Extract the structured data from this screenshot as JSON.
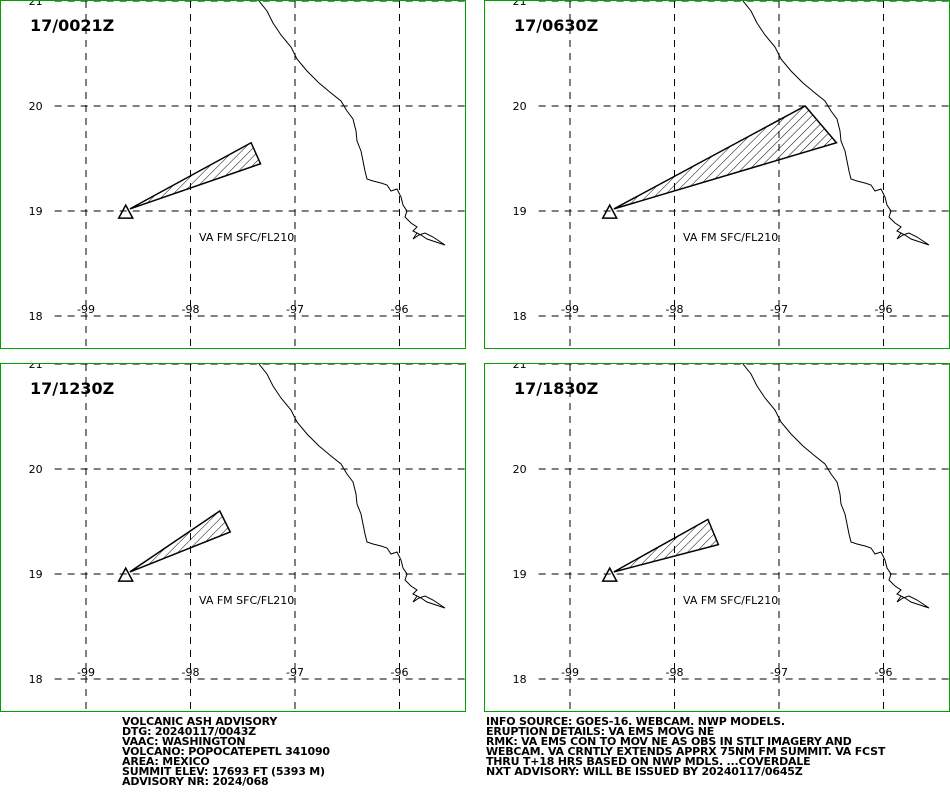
{
  "panels": [
    {
      "time": "17/0021Z",
      "label": "VA FM SFC/FL210",
      "plume": [
        [
          -98.58,
          19.02
        ],
        [
          -97.42,
          19.65
        ],
        [
          -97.33,
          19.45
        ]
      ]
    },
    {
      "time": "17/0630Z",
      "label": "VA FM SFC/FL210",
      "plume": [
        [
          -98.58,
          19.02
        ],
        [
          -96.75,
          20.0
        ],
        [
          -96.45,
          19.65
        ]
      ]
    },
    {
      "time": "17/1230Z",
      "label": "VA FM SFC/FL210",
      "plume": [
        [
          -98.58,
          19.02
        ],
        [
          -97.72,
          19.6
        ],
        [
          -97.62,
          19.4
        ]
      ]
    },
    {
      "time": "17/1830Z",
      "label": "VA FM SFC/FL210",
      "plume": [
        [
          -98.58,
          19.02
        ],
        [
          -97.68,
          19.52
        ],
        [
          -97.58,
          19.28
        ]
      ]
    }
  ],
  "map": {
    "lat_labels": [
      "21",
      "20",
      "19",
      "18"
    ],
    "lon_labels": [
      "-99",
      "-98",
      "-97",
      "-96"
    ],
    "volcano_symbol": "triangle-icon",
    "border_color": "#00a000"
  },
  "advisory_left": [
    "VOLCANIC ASH ADVISORY",
    "DTG: 20240117/0043Z",
    "VAAC: WASHINGTON",
    "VOLCANO: POPOCATEPETL 341090",
    "AREA: MEXICO",
    "SUMMIT ELEV: 17693 FT (5393 M)",
    "ADVISORY NR: 2024/068"
  ],
  "advisory_right": [
    "INFO SOURCE: GOES-16. WEBCAM. NWP MODELS.",
    "ERUPTION DETAILS: VA EMS MOVG NE",
    "RMK: VA EMS CON TO MOV NE AS OBS IN STLT IMAGERY AND",
    "WEBCAM. VA CRNTLY EXTENDS APPRX 75NM FM SUMMIT. VA FCST",
    "THRU T+18 HRS BASED ON NWP MDLS. ...COVERDALE",
    "NXT ADVISORY: WILL BE ISSUED BY 20240117/0645Z"
  ]
}
